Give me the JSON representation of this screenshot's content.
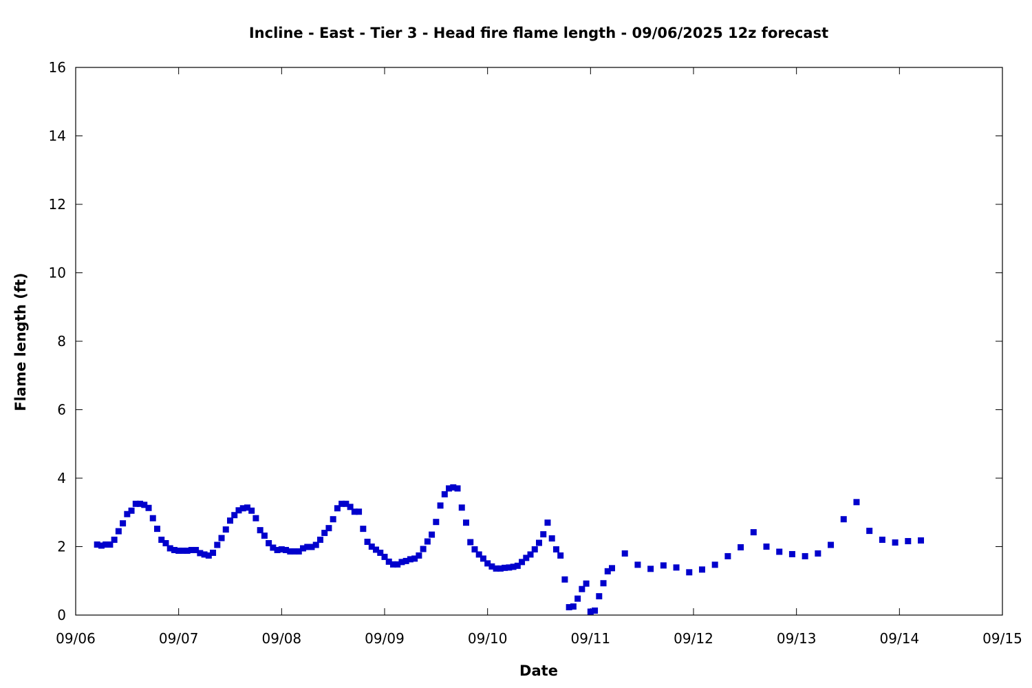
{
  "chart_data": {
    "type": "scatter",
    "title": "Incline - East - Tier 3 - Head fire flame length - 09/06/2025 12z forecast",
    "xlabel": "Date",
    "ylabel": "Flame length (ft)",
    "xlim": [
      "2025-09-06T00:00",
      "2025-09-15T00:00"
    ],
    "ylim": [
      0,
      16
    ],
    "xticks": [
      "09/06",
      "09/07",
      "09/08",
      "09/09",
      "09/10",
      "09/11",
      "09/12",
      "09/13",
      "09/14",
      "09/15"
    ],
    "yticks": [
      "0",
      "2",
      "4",
      "6",
      "8",
      "10",
      "12",
      "14",
      "16"
    ],
    "grid": false,
    "marker_color": "#0000cc",
    "marker": "square",
    "series": [
      {
        "points": [
          [
            "2025-09-06T05:00",
            2.06
          ],
          [
            "2025-09-06T06:00",
            2.03
          ],
          [
            "2025-09-06T07:00",
            2.06
          ],
          [
            "2025-09-06T08:00",
            2.06
          ],
          [
            "2025-09-06T09:00",
            2.2
          ],
          [
            "2025-09-06T10:00",
            2.45
          ],
          [
            "2025-09-06T11:00",
            2.68
          ],
          [
            "2025-09-06T12:00",
            2.95
          ],
          [
            "2025-09-06T13:00",
            3.05
          ],
          [
            "2025-09-06T14:00",
            3.25
          ],
          [
            "2025-09-06T15:00",
            3.25
          ],
          [
            "2025-09-06T16:00",
            3.22
          ],
          [
            "2025-09-06T17:00",
            3.13
          ],
          [
            "2025-09-06T18:00",
            2.83
          ],
          [
            "2025-09-06T19:00",
            2.52
          ],
          [
            "2025-09-06T20:00",
            2.2
          ],
          [
            "2025-09-06T21:00",
            2.1
          ],
          [
            "2025-09-06T22:00",
            1.95
          ],
          [
            "2025-09-06T23:00",
            1.9
          ],
          [
            "2025-09-07T00:00",
            1.88
          ],
          [
            "2025-09-07T01:00",
            1.88
          ],
          [
            "2025-09-07T02:00",
            1.88
          ],
          [
            "2025-09-07T03:00",
            1.9
          ],
          [
            "2025-09-07T04:00",
            1.9
          ],
          [
            "2025-09-07T05:00",
            1.81
          ],
          [
            "2025-09-07T06:00",
            1.77
          ],
          [
            "2025-09-07T07:00",
            1.74
          ],
          [
            "2025-09-07T08:00",
            1.82
          ],
          [
            "2025-09-07T09:00",
            2.05
          ],
          [
            "2025-09-07T10:00",
            2.25
          ],
          [
            "2025-09-07T11:00",
            2.5
          ],
          [
            "2025-09-07T12:00",
            2.76
          ],
          [
            "2025-09-07T13:00",
            2.92
          ],
          [
            "2025-09-07T14:00",
            3.06
          ],
          [
            "2025-09-07T15:00",
            3.12
          ],
          [
            "2025-09-07T16:00",
            3.14
          ],
          [
            "2025-09-07T17:00",
            3.05
          ],
          [
            "2025-09-07T18:00",
            2.83
          ],
          [
            "2025-09-07T19:00",
            2.48
          ],
          [
            "2025-09-07T20:00",
            2.32
          ],
          [
            "2025-09-07T21:00",
            2.1
          ],
          [
            "2025-09-07T22:00",
            1.97
          ],
          [
            "2025-09-07T23:00",
            1.9
          ],
          [
            "2025-09-08T00:00",
            1.92
          ],
          [
            "2025-09-08T01:00",
            1.9
          ],
          [
            "2025-09-08T02:00",
            1.86
          ],
          [
            "2025-09-08T03:00",
            1.86
          ],
          [
            "2025-09-08T04:00",
            1.86
          ],
          [
            "2025-09-08T05:00",
            1.95
          ],
          [
            "2025-09-08T06:00",
            1.99
          ],
          [
            "2025-09-08T07:00",
            1.99
          ],
          [
            "2025-09-08T08:00",
            2.05
          ],
          [
            "2025-09-08T09:00",
            2.2
          ],
          [
            "2025-09-08T10:00",
            2.4
          ],
          [
            "2025-09-08T11:00",
            2.54
          ],
          [
            "2025-09-08T12:00",
            2.8
          ],
          [
            "2025-09-08T13:00",
            3.12
          ],
          [
            "2025-09-08T14:00",
            3.25
          ],
          [
            "2025-09-08T15:00",
            3.25
          ],
          [
            "2025-09-08T16:00",
            3.16
          ],
          [
            "2025-09-08T17:00",
            3.02
          ],
          [
            "2025-09-08T18:00",
            3.02
          ],
          [
            "2025-09-08T19:00",
            2.52
          ],
          [
            "2025-09-08T20:00",
            2.14
          ],
          [
            "2025-09-08T21:00",
            2.0
          ],
          [
            "2025-09-08T22:00",
            1.91
          ],
          [
            "2025-09-08T23:00",
            1.82
          ],
          [
            "2025-09-09T00:00",
            1.7
          ],
          [
            "2025-09-09T01:00",
            1.56
          ],
          [
            "2025-09-09T02:00",
            1.48
          ],
          [
            "2025-09-09T03:00",
            1.48
          ],
          [
            "2025-09-09T04:00",
            1.55
          ],
          [
            "2025-09-09T05:00",
            1.58
          ],
          [
            "2025-09-09T06:00",
            1.63
          ],
          [
            "2025-09-09T07:00",
            1.65
          ],
          [
            "2025-09-09T08:00",
            1.74
          ],
          [
            "2025-09-09T09:00",
            1.93
          ],
          [
            "2025-09-09T10:00",
            2.15
          ],
          [
            "2025-09-09T11:00",
            2.35
          ],
          [
            "2025-09-09T12:00",
            2.72
          ],
          [
            "2025-09-09T13:00",
            3.2
          ],
          [
            "2025-09-09T14:00",
            3.53
          ],
          [
            "2025-09-09T15:00",
            3.7
          ],
          [
            "2025-09-09T16:00",
            3.73
          ],
          [
            "2025-09-09T17:00",
            3.7
          ],
          [
            "2025-09-09T18:00",
            3.14
          ],
          [
            "2025-09-09T19:00",
            2.7
          ],
          [
            "2025-09-09T20:00",
            2.13
          ],
          [
            "2025-09-09T21:00",
            1.92
          ],
          [
            "2025-09-09T22:00",
            1.77
          ],
          [
            "2025-09-09T23:00",
            1.65
          ],
          [
            "2025-09-10T00:00",
            1.51
          ],
          [
            "2025-09-10T01:00",
            1.42
          ],
          [
            "2025-09-10T02:00",
            1.36
          ],
          [
            "2025-09-10T03:00",
            1.36
          ],
          [
            "2025-09-10T04:00",
            1.38
          ],
          [
            "2025-09-10T05:00",
            1.39
          ],
          [
            "2025-09-10T06:00",
            1.41
          ],
          [
            "2025-09-10T07:00",
            1.44
          ],
          [
            "2025-09-10T08:00",
            1.55
          ],
          [
            "2025-09-10T09:00",
            1.67
          ],
          [
            "2025-09-10T10:00",
            1.77
          ],
          [
            "2025-09-10T11:00",
            1.92
          ],
          [
            "2025-09-10T12:00",
            2.11
          ],
          [
            "2025-09-10T13:00",
            2.36
          ],
          [
            "2025-09-10T14:00",
            2.7
          ],
          [
            "2025-09-10T15:00",
            2.24
          ],
          [
            "2025-09-10T16:00",
            1.92
          ],
          [
            "2025-09-10T17:00",
            1.74
          ],
          [
            "2025-09-10T18:00",
            1.04
          ],
          [
            "2025-09-10T19:00",
            0.23
          ],
          [
            "2025-09-10T20:00",
            0.25
          ],
          [
            "2025-09-10T21:00",
            0.48
          ],
          [
            "2025-09-10T22:00",
            0.76
          ],
          [
            "2025-09-10T23:00",
            0.92
          ],
          [
            "2025-09-11T00:00",
            0.1
          ],
          [
            "2025-09-11T01:00",
            0.13
          ],
          [
            "2025-09-11T02:00",
            0.55
          ],
          [
            "2025-09-11T03:00",
            0.93
          ],
          [
            "2025-09-11T04:00",
            1.28
          ],
          [
            "2025-09-11T05:00",
            1.37
          ],
          [
            "2025-09-11T08:00",
            1.8
          ],
          [
            "2025-09-11T11:00",
            1.47
          ],
          [
            "2025-09-11T14:00",
            1.35
          ],
          [
            "2025-09-11T17:00",
            1.45
          ],
          [
            "2025-09-11T20:00",
            1.39
          ],
          [
            "2025-09-11T23:00",
            1.25
          ],
          [
            "2025-09-12T02:00",
            1.33
          ],
          [
            "2025-09-12T05:00",
            1.47
          ],
          [
            "2025-09-12T08:00",
            1.72
          ],
          [
            "2025-09-12T11:00",
            1.98
          ],
          [
            "2025-09-12T14:00",
            2.42
          ],
          [
            "2025-09-12T17:00",
            2.0
          ],
          [
            "2025-09-12T20:00",
            1.85
          ],
          [
            "2025-09-12T23:00",
            1.78
          ],
          [
            "2025-09-13T02:00",
            1.72
          ],
          [
            "2025-09-13T05:00",
            1.8
          ],
          [
            "2025-09-13T08:00",
            2.05
          ],
          [
            "2025-09-13T11:00",
            2.8
          ],
          [
            "2025-09-13T14:00",
            3.3
          ],
          [
            "2025-09-13T17:00",
            2.46
          ],
          [
            "2025-09-13T20:00",
            2.2
          ],
          [
            "2025-09-13T23:00",
            2.12
          ],
          [
            "2025-09-14T02:00",
            2.16
          ],
          [
            "2025-09-14T05:00",
            2.18
          ]
        ]
      }
    ]
  }
}
